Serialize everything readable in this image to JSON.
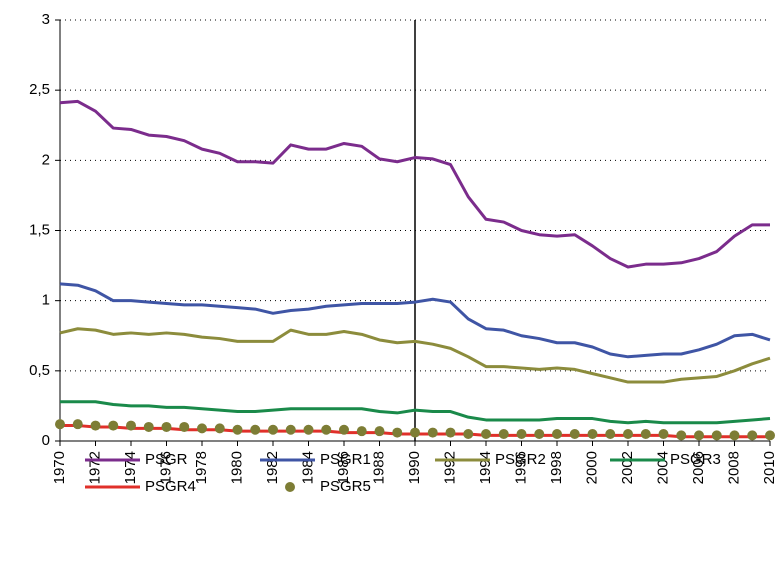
{
  "chart_data": {
    "type": "line",
    "x": [
      1970,
      1971,
      1972,
      1973,
      1974,
      1975,
      1976,
      1977,
      1978,
      1979,
      1980,
      1981,
      1982,
      1983,
      1984,
      1985,
      1986,
      1987,
      1988,
      1989,
      1990,
      1991,
      1992,
      1993,
      1994,
      1995,
      1996,
      1997,
      1998,
      1999,
      2000,
      2001,
      2002,
      2003,
      2004,
      2005,
      2006,
      2007,
      2008,
      2009,
      2010
    ],
    "xlim": [
      1970,
      2010
    ],
    "xticks": [
      1970,
      1972,
      1974,
      1976,
      1978,
      1980,
      1982,
      1984,
      1986,
      1988,
      1990,
      1992,
      1994,
      1996,
      1998,
      2000,
      2002,
      2004,
      2006,
      2008,
      2010
    ],
    "ylim": [
      0,
      3
    ],
    "yticks": [
      0,
      {
        "value": 0.5,
        "label": "0,5"
      },
      1,
      {
        "value": 1.5,
        "label": "1,5"
      },
      2,
      {
        "value": 2.5,
        "label": "2,5"
      },
      3
    ],
    "grid": true,
    "vline": 1990,
    "legend": "bottom",
    "series": [
      {
        "name": "PSGR",
        "color": "#7b2c8c",
        "mode": "line",
        "values": [
          2.41,
          2.42,
          2.35,
          2.23,
          2.22,
          2.18,
          2.17,
          2.14,
          2.08,
          2.05,
          1.99,
          1.99,
          1.98,
          2.11,
          2.08,
          2.08,
          2.12,
          2.1,
          2.01,
          1.99,
          2.02,
          2.01,
          1.97,
          1.74,
          1.58,
          1.56,
          1.5,
          1.47,
          1.46,
          1.47,
          1.39,
          1.3,
          1.24,
          1.26,
          1.26,
          1.27,
          1.3,
          1.35,
          1.46,
          1.54,
          1.54
        ]
      },
      {
        "name": "PSGR1",
        "color": "#3f55a5",
        "mode": "line",
        "values": [
          1.12,
          1.11,
          1.07,
          1.0,
          1.0,
          0.99,
          0.98,
          0.97,
          0.97,
          0.96,
          0.95,
          0.94,
          0.91,
          0.93,
          0.94,
          0.96,
          0.97,
          0.98,
          0.98,
          0.98,
          0.99,
          1.01,
          0.99,
          0.87,
          0.8,
          0.79,
          0.75,
          0.73,
          0.7,
          0.7,
          0.67,
          0.62,
          0.6,
          0.61,
          0.62,
          0.62,
          0.65,
          0.69,
          0.75,
          0.76,
          0.72
        ]
      },
      {
        "name": "PSGR2",
        "color": "#8c8c3c",
        "mode": "line",
        "values": [
          0.77,
          0.8,
          0.79,
          0.76,
          0.77,
          0.76,
          0.77,
          0.76,
          0.74,
          0.73,
          0.71,
          0.71,
          0.71,
          0.79,
          0.76,
          0.76,
          0.78,
          0.76,
          0.72,
          0.7,
          0.71,
          0.69,
          0.66,
          0.6,
          0.53,
          0.53,
          0.52,
          0.51,
          0.52,
          0.51,
          0.48,
          0.45,
          0.42,
          0.42,
          0.42,
          0.44,
          0.45,
          0.46,
          0.5,
          0.55,
          0.59
        ]
      },
      {
        "name": "PSGR3",
        "color": "#1a8a4a",
        "mode": "line",
        "values": [
          0.28,
          0.28,
          0.28,
          0.26,
          0.25,
          0.25,
          0.24,
          0.24,
          0.23,
          0.22,
          0.21,
          0.21,
          0.22,
          0.23,
          0.23,
          0.23,
          0.23,
          0.23,
          0.21,
          0.2,
          0.22,
          0.21,
          0.21,
          0.17,
          0.15,
          0.15,
          0.15,
          0.15,
          0.16,
          0.16,
          0.16,
          0.14,
          0.13,
          0.14,
          0.13,
          0.13,
          0.13,
          0.13,
          0.14,
          0.15,
          0.16
        ]
      },
      {
        "name": "PSGR4",
        "color": "#e0302a",
        "mode": "line",
        "values": [
          0.11,
          0.11,
          0.1,
          0.1,
          0.09,
          0.09,
          0.09,
          0.08,
          0.08,
          0.08,
          0.07,
          0.07,
          0.07,
          0.07,
          0.07,
          0.07,
          0.06,
          0.06,
          0.06,
          0.05,
          0.05,
          0.05,
          0.05,
          0.05,
          0.04,
          0.04,
          0.04,
          0.04,
          0.04,
          0.04,
          0.04,
          0.04,
          0.04,
          0.04,
          0.04,
          0.03,
          0.03,
          0.03,
          0.03,
          0.03,
          0.03
        ]
      },
      {
        "name": "PSGR5",
        "color": "#7d7d35",
        "mode": "markers",
        "values": [
          0.12,
          0.12,
          0.11,
          0.11,
          0.11,
          0.1,
          0.1,
          0.1,
          0.09,
          0.09,
          0.08,
          0.08,
          0.08,
          0.08,
          0.08,
          0.08,
          0.08,
          0.07,
          0.07,
          0.06,
          0.06,
          0.06,
          0.06,
          0.05,
          0.05,
          0.05,
          0.05,
          0.05,
          0.05,
          0.05,
          0.05,
          0.05,
          0.05,
          0.05,
          0.05,
          0.04,
          0.04,
          0.04,
          0.04,
          0.04,
          0.04
        ]
      }
    ]
  }
}
